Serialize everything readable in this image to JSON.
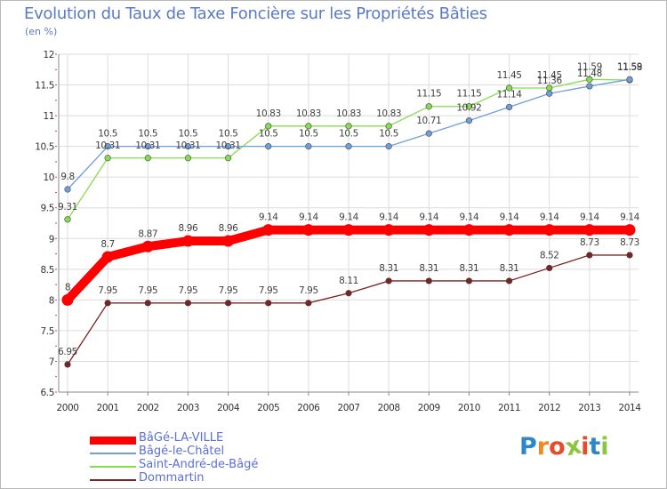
{
  "chart_data": {
    "type": "line",
    "title": "Evolution du Taux de Taxe Foncière sur les Propriétés Bâties",
    "subtitle": "(en %)",
    "xlabel": "",
    "ylabel": "",
    "x": [
      "2000",
      "2001",
      "2002",
      "2003",
      "2004",
      "2005",
      "2006",
      "2007",
      "2008",
      "2009",
      "2010",
      "2011",
      "2012",
      "2013",
      "2014"
    ],
    "ylim": [
      6.5,
      12
    ],
    "yticks": [
      "6.5",
      "7",
      "7.5",
      "8",
      "8.5",
      "9",
      "9.5",
      "10",
      "10.5",
      "11",
      "11.5",
      "12"
    ],
    "grid": true,
    "legend_position": "bottom-left",
    "series": [
      {
        "name": "BâGé-LA-VILLE",
        "color": "#ff0000",
        "values": [
          8,
          8.7,
          8.87,
          8.96,
          8.96,
          9.14,
          9.14,
          9.14,
          9.14,
          9.14,
          9.14,
          9.14,
          9.14,
          9.14,
          9.14
        ],
        "labels": [
          "8",
          "8.7",
          "8.87",
          "8.96",
          "8.96",
          "9.14",
          "9.14",
          "9.14",
          "9.14",
          "9.14",
          "9.14",
          "9.14",
          "9.14",
          "9.14",
          "9.14"
        ]
      },
      {
        "name": "Bâgé-le-Châtel",
        "color": "#6f9fd8",
        "values": [
          9.8,
          10.5,
          10.5,
          10.5,
          10.5,
          10.5,
          10.5,
          10.5,
          10.5,
          10.71,
          10.92,
          11.14,
          11.36,
          11.48,
          11.59
        ],
        "labels": [
          "9.8",
          "10.5",
          "10.5",
          "10.5",
          "10.5",
          "10.5",
          "10.5",
          "10.5",
          "10.5",
          "10.71",
          "10.92",
          "11.14",
          "11.36",
          "11.48",
          "11.59"
        ]
      },
      {
        "name": "Saint-André-de-Bâgé",
        "color": "#88dc50",
        "values": [
          9.31,
          10.31,
          10.31,
          10.31,
          10.31,
          10.83,
          10.83,
          10.83,
          10.83,
          11.15,
          11.15,
          11.45,
          11.45,
          11.59,
          11.58
        ],
        "labels": [
          "9.31",
          "10.31",
          "10.31",
          "10.31",
          "10.31",
          "10.83",
          "10.83",
          "10.83",
          "10.83",
          "11.15",
          "11.15",
          "11.45",
          "11.45",
          "11.59",
          "11.58"
        ]
      },
      {
        "name": "Dommartin",
        "color": "#7a2323",
        "values": [
          6.95,
          7.95,
          7.95,
          7.95,
          7.95,
          7.95,
          7.95,
          8.11,
          8.31,
          8.31,
          8.31,
          8.31,
          8.52,
          8.73,
          8.73
        ],
        "labels": [
          "6.95",
          "7.95",
          "7.95",
          "7.95",
          "7.95",
          "7.95",
          "7.95",
          "8.11",
          "8.31",
          "8.31",
          "8.31",
          "8.31",
          "8.52",
          "8.73",
          "8.73"
        ]
      }
    ]
  },
  "legend": {
    "items": [
      {
        "label": "BâGé-LA-VILLE",
        "color": "#ff0000"
      },
      {
        "label": "Bâgé-le-Châtel",
        "color": "#6f9fd8"
      },
      {
        "label": "Saint-André-de-Bâgé",
        "color": "#88dc50"
      },
      {
        "label": "Dommartin",
        "color": "#7a2323"
      }
    ]
  },
  "logo": {
    "text": "Proxiti",
    "letters": [
      "P",
      "r",
      "o",
      "x",
      "i",
      "t",
      "i"
    ],
    "colors": [
      "#2f86c9",
      "#f08a1c",
      "#e64b2a",
      "#8cc63f",
      "#e64b2a",
      "#2f86c9",
      "#8cc63f"
    ]
  }
}
